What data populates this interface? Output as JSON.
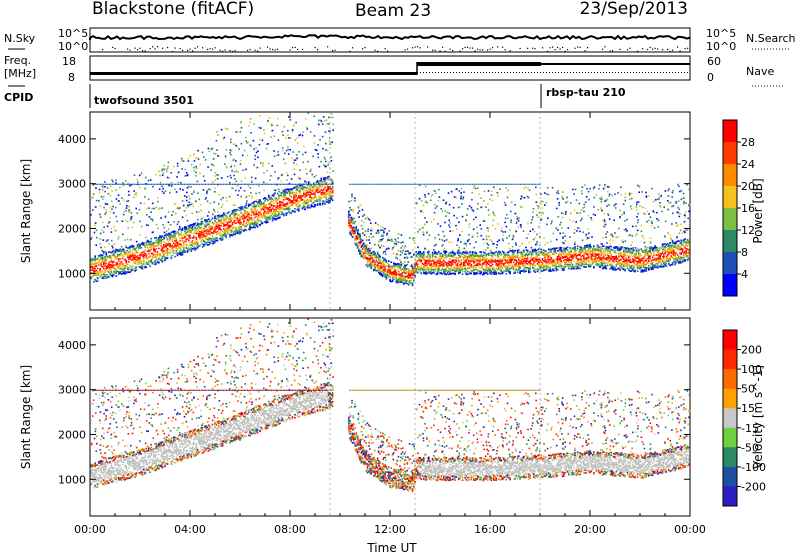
{
  "header": {
    "radar": "Blackstone (fitACF)",
    "beam": "Beam 23",
    "date": "23/Sep/2013"
  },
  "top_panel": {
    "nsky_label": "N.Sky",
    "nsearch_label": "N.Search",
    "nsky_ticks": [
      "10^5",
      "10^0"
    ],
    "freq_label": "Freq.",
    "freq_unit": "[MHz]",
    "freq_ticks": [
      "18",
      "8"
    ],
    "nave_label": "Nave",
    "nave_ticks": [
      "60",
      "0"
    ],
    "cpid_label": "CPID",
    "cpid_programs": [
      "twofsound 3501",
      "rbsp-tau 210"
    ]
  },
  "colors": {
    "power_scale": [
      "#0000ff",
      "#1e4fb4",
      "#2a8a64",
      "#7bc043",
      "#f4c21a",
      "#ff8a00",
      "#ff3b00",
      "#ff0000"
    ],
    "velocity_scale": [
      "#2a1fc0",
      "#1f4fa0",
      "#2a8a64",
      "#6fd040",
      "#c8c8c8",
      "#ffa000",
      "#ff6a00",
      "#ff2800",
      "#ff0000"
    ],
    "ground_scatter": "#c0c0bc"
  },
  "chart_data": [
    {
      "type": "heatmap",
      "name": "power",
      "xlabel": "Time UT",
      "ylabel": "Slant Range [km]",
      "colorbar_label": "Power [dB]",
      "colorbar_ticks": [
        "28",
        "24",
        "20",
        "16",
        "12",
        "8",
        "4"
      ],
      "x_ticks": [
        "00:00",
        "04:00",
        "08:00",
        "12:00",
        "16:00",
        "20:00",
        "00:00"
      ],
      "y_ticks": [
        "1000",
        "2000",
        "3000",
        "4000"
      ],
      "xlim": [
        0,
        24
      ],
      "ylim": [
        180,
        4600
      ],
      "main_echo_band_km": {
        "time_h": [
          0,
          2,
          4,
          6,
          8,
          9.6,
          10.3,
          11,
          12,
          12.9,
          13,
          16,
          18,
          20,
          22,
          24
        ],
        "range_km": [
          1100,
          1400,
          1800,
          2200,
          2650,
          2900,
          2200,
          1400,
          1050,
          950,
          1250,
          1250,
          1300,
          1400,
          1300,
          1550
        ]
      }
    },
    {
      "type": "heatmap",
      "name": "velocity",
      "xlabel": "Time UT",
      "ylabel": "Slant Range [km]",
      "colorbar_label": "Velocity [m s^-1]",
      "colorbar_ticks": [
        "200",
        "100",
        "50",
        "15",
        "-15",
        "-50",
        "-100",
        "-200"
      ],
      "x_ticks": [
        "00:00",
        "04:00",
        "08:00",
        "12:00",
        "16:00",
        "20:00",
        "00:00"
      ],
      "y_ticks": [
        "1000",
        "2000",
        "3000",
        "4000"
      ],
      "xlim": [
        0,
        24
      ],
      "ylim": [
        180,
        4600
      ]
    }
  ]
}
